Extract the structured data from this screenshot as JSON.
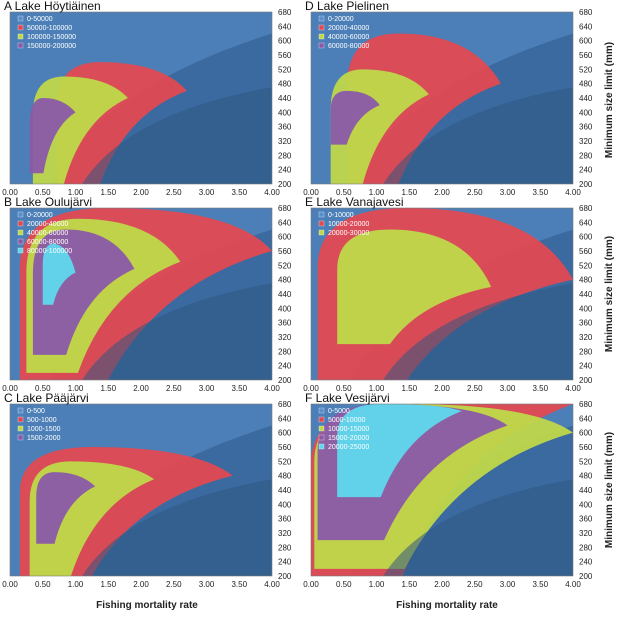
{
  "figure": {
    "xlabel": "Fishing mortality rate",
    "ylabel": "Minimum size limit (mm)"
  },
  "colors": {
    "background": "#3a6aa0",
    "band1": "#5b8fca",
    "band2": "#e04a52",
    "band3": "#bfd84a",
    "band4": "#8a5aa8",
    "band5": "#5fd8ee"
  },
  "chart_data": [
    {
      "type": "heatmap",
      "title": "A Lake Höytiäinen",
      "xlim": [
        0,
        4
      ],
      "ylim": [
        200,
        680
      ],
      "x_ticks": [
        "0.00",
        "0.50",
        "1.00",
        "1.50",
        "2.00",
        "2.50",
        "3.00",
        "3.50",
        "4.00"
      ],
      "y_ticks": [
        "200",
        "240",
        "280",
        "320",
        "360",
        "400",
        "440",
        "480",
        "520",
        "560",
        "600",
        "640",
        "680"
      ],
      "legend": [
        "0-50000",
        "50000-100000",
        "100000-150000",
        "150000-200000"
      ],
      "regions": [
        {
          "band": "50000-100000",
          "f_min": 0.72,
          "f_max": 2.7,
          "size_min": 200,
          "size_max": 540,
          "peak_f": 2.6,
          "peak_size": 460
        },
        {
          "band": "100000-150000",
          "f_min": 0.35,
          "f_max": 1.8,
          "size_min": 200,
          "size_max": 500,
          "peak_f": 1.7,
          "peak_size": 440
        },
        {
          "band": "150000-200000",
          "f_min": 0.3,
          "f_max": 1.0,
          "size_min": 230,
          "size_max": 440,
          "peak_f": 0.9,
          "peak_size": 400
        }
      ]
    },
    {
      "type": "heatmap",
      "title": "B Lake Oulujärvi",
      "xlim": [
        0,
        4
      ],
      "ylim": [
        200,
        680
      ],
      "x_ticks": [
        "0.00",
        "0.50",
        "1.00",
        "1.50",
        "2.00",
        "2.50",
        "3.00",
        "3.50",
        "4.00"
      ],
      "y_ticks": [
        "200",
        "240",
        "280",
        "320",
        "360",
        "400",
        "440",
        "480",
        "520",
        "560",
        "600",
        "640",
        "680"
      ],
      "legend": [
        "0-20000",
        "20000-40000",
        "40000-60000",
        "60000-80000",
        "80000-100000"
      ],
      "regions": [
        {
          "band": "20000-40000",
          "f_min": 0.15,
          "f_max": 4.0,
          "size_min": 200,
          "size_max": 680,
          "peak_f": 4.0,
          "peak_size": 560
        },
        {
          "band": "40000-60000",
          "f_min": 0.25,
          "f_max": 2.6,
          "size_min": 220,
          "size_max": 650,
          "peak_f": 2.5,
          "peak_size": 530
        },
        {
          "band": "60000-80000",
          "f_min": 0.35,
          "f_max": 1.9,
          "size_min": 270,
          "size_max": 620,
          "peak_f": 1.8,
          "peak_size": 510
        },
        {
          "band": "80000-100000",
          "f_min": 0.5,
          "f_max": 1.0,
          "size_min": 410,
          "size_max": 580,
          "peak_f": 0.95,
          "peak_size": 500
        }
      ]
    },
    {
      "type": "heatmap",
      "title": "C Lake Pääjärvi",
      "xlim": [
        0,
        4
      ],
      "ylim": [
        200,
        680
      ],
      "x_ticks": [
        "0.00",
        "0.50",
        "1.00",
        "1.50",
        "2.00",
        "2.50",
        "3.00",
        "3.50",
        "4.00"
      ],
      "y_ticks": [
        "200",
        "240",
        "280",
        "320",
        "360",
        "400",
        "440",
        "480",
        "520",
        "560",
        "600",
        "640",
        "680"
      ],
      "legend": [
        "0-500",
        "500-1000",
        "1000-1500",
        "1500-2000"
      ],
      "regions": [
        {
          "band": "500-1000",
          "f_min": 0.15,
          "f_max": 3.4,
          "size_min": 200,
          "size_max": 560,
          "peak_f": 3.3,
          "peak_size": 480
        },
        {
          "band": "1000-1500",
          "f_min": 0.3,
          "f_max": 2.2,
          "size_min": 200,
          "size_max": 520,
          "peak_f": 2.1,
          "peak_size": 470
        },
        {
          "band": "1500-2000",
          "f_min": 0.4,
          "f_max": 1.3,
          "size_min": 290,
          "size_max": 490,
          "peak_f": 1.2,
          "peak_size": 450
        }
      ]
    },
    {
      "type": "heatmap",
      "title": "D Lake Pielinen",
      "xlim": [
        0,
        4
      ],
      "ylim": [
        200,
        680
      ],
      "x_ticks": [
        "0.00",
        "0.50",
        "1.00",
        "1.50",
        "2.00",
        "2.50",
        "3.00",
        "3.50",
        "4.00"
      ],
      "y_ticks": [
        "200",
        "240",
        "280",
        "320",
        "360",
        "400",
        "440",
        "480",
        "520",
        "560",
        "600",
        "640",
        "680"
      ],
      "legend": [
        "0-20000",
        "20000-40000",
        "40000-60000",
        "60000-80000"
      ],
      "regions": [
        {
          "band": "20000-40000",
          "f_min": 0.55,
          "f_max": 2.9,
          "size_min": 200,
          "size_max": 620,
          "peak_f": 2.8,
          "peak_size": 480
        },
        {
          "band": "40000-60000",
          "f_min": 0.3,
          "f_max": 1.8,
          "size_min": 200,
          "size_max": 520,
          "peak_f": 1.7,
          "peak_size": 450
        },
        {
          "band": "60000-80000",
          "f_min": 0.3,
          "f_max": 1.05,
          "size_min": 310,
          "size_max": 460,
          "peak_f": 1.0,
          "peak_size": 420
        }
      ]
    },
    {
      "type": "heatmap",
      "title": "E Lake Vanajavesi",
      "xlim": [
        0,
        4
      ],
      "ylim": [
        200,
        680
      ],
      "x_ticks": [
        "0.00",
        "0.50",
        "1.00",
        "1.50",
        "2.00",
        "2.50",
        "3.00",
        "3.50",
        "4.00"
      ],
      "y_ticks": [
        "200",
        "240",
        "280",
        "320",
        "360",
        "400",
        "440",
        "480",
        "520",
        "560",
        "600",
        "640",
        "680"
      ],
      "legend": [
        "0-10000",
        "10000-20000",
        "20000-30000"
      ],
      "regions": [
        {
          "band": "10000-20000",
          "f_min": 0.1,
          "f_max": 4.0,
          "size_min": 200,
          "size_max": 680,
          "peak_f": 4.0,
          "peak_size": 480
        },
        {
          "band": "20000-30000",
          "f_min": 0.4,
          "f_max": 2.75,
          "size_min": 300,
          "size_max": 620,
          "peak_f": 2.7,
          "peak_size": 460
        }
      ]
    },
    {
      "type": "heatmap",
      "title": "F Lake Vesijärvi",
      "xlim": [
        0,
        4
      ],
      "ylim": [
        200,
        680
      ],
      "x_ticks": [
        "0.00",
        "0.50",
        "1.00",
        "1.50",
        "2.00",
        "2.50",
        "3.00",
        "3.50",
        "4.00"
      ],
      "y_ticks": [
        "200",
        "240",
        "280",
        "320",
        "360",
        "400",
        "440",
        "480",
        "520",
        "560",
        "600",
        "640",
        "680"
      ],
      "legend": [
        "0-5000",
        "5000-10000",
        "10000-15000",
        "15000-20000",
        "20000-25000"
      ],
      "regions": [
        {
          "band": "5000-10000",
          "f_min": 0.0,
          "f_max": 4.0,
          "size_min": 200,
          "size_max": 680,
          "peak_f": 4.0,
          "peak_size": 680
        },
        {
          "band": "10000-15000",
          "f_min": 0.05,
          "f_max": 4.0,
          "size_min": 220,
          "size_max": 680,
          "peak_f": 4.0,
          "peak_size": 600
        },
        {
          "band": "15000-20000",
          "f_min": 0.1,
          "f_max": 3.0,
          "size_min": 300,
          "size_max": 680,
          "peak_f": 3.0,
          "peak_size": 620
        },
        {
          "band": "20000-25000",
          "f_min": 0.4,
          "f_max": 2.3,
          "size_min": 420,
          "size_max": 680,
          "peak_f": 2.3,
          "peak_size": 660
        }
      ]
    }
  ]
}
